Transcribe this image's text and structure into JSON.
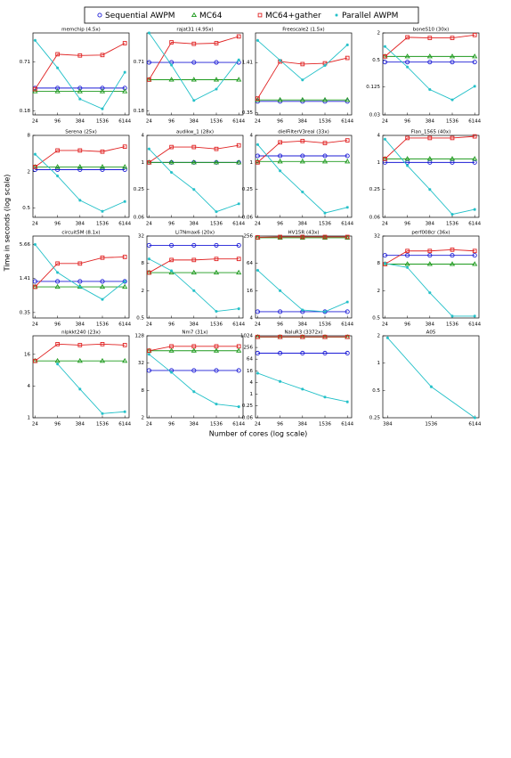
{
  "legend": [
    {
      "name": "Sequential AWPM",
      "color": "#1c1cd6",
      "marker": "circle"
    },
    {
      "name": "MC64",
      "color": "#1e9a1e",
      "marker": "triangle"
    },
    {
      "name": "MC64+gather",
      "color": "#e02222",
      "marker": "square"
    },
    {
      "name": "Parallel AWPM",
      "color": "#22c0c8",
      "marker": "star"
    }
  ],
  "y_label": "Time in seconds (log scale)",
  "x_label": "Number of cores (log scale)",
  "chart_data": [
    {
      "type": "line",
      "title": "memchip (4.5x)",
      "x": [
        24,
        96,
        384,
        1536,
        6144
      ],
      "xticks": [
        24,
        96,
        384,
        1536,
        6144
      ],
      "xlim": [
        21,
        8000
      ],
      "xscale": "log",
      "yscale": "log",
      "ylim": [
        0.16,
        1.6
      ],
      "yticks": [
        0.18,
        0.71
      ],
      "series": [
        {
          "values": [
            0.34,
            0.34,
            0.34,
            0.34,
            0.34
          ]
        },
        {
          "values": [
            0.31,
            0.31,
            0.31,
            0.31,
            0.31
          ]
        },
        {
          "values": [
            0.33,
            0.88,
            0.85,
            0.86,
            1.2
          ]
        },
        {
          "values": [
            1.3,
            0.6,
            0.25,
            0.19,
            0.53
          ]
        }
      ]
    },
    {
      "type": "line",
      "title": "rajat31 (4.95x)",
      "x": [
        24,
        96,
        384,
        1536,
        6144
      ],
      "xticks": [
        24,
        96,
        384,
        1536,
        6144
      ],
      "xlim": [
        21,
        8000
      ],
      "xscale": "log",
      "yscale": "log",
      "ylim": [
        0.16,
        1.6
      ],
      "yticks": [
        0.18,
        0.71
      ],
      "series": [
        {
          "values": [
            0.7,
            0.7,
            0.7,
            0.7,
            0.7
          ]
        },
        {
          "values": [
            0.43,
            0.43,
            0.43,
            0.43,
            0.43
          ]
        },
        {
          "values": [
            0.43,
            1.23,
            1.18,
            1.2,
            1.45
          ]
        },
        {
          "values": [
            1.6,
            0.65,
            0.24,
            0.33,
            0.75
          ]
        }
      ]
    },
    {
      "type": "line",
      "title": "Freescale2 (1.5x)",
      "x": [
        24,
        96,
        384,
        1536,
        6144
      ],
      "xticks": [
        24,
        96,
        384,
        1536,
        6144
      ],
      "xlim": [
        21,
        8000
      ],
      "xscale": "log",
      "yscale": "log",
      "ylim": [
        0.33,
        3.2
      ],
      "yticks": [
        0.35,
        1.41
      ],
      "series": [
        {
          "values": [
            0.48,
            0.48,
            0.48,
            0.48,
            0.48
          ]
        },
        {
          "values": [
            0.5,
            0.5,
            0.5,
            0.5,
            0.5
          ]
        },
        {
          "values": [
            0.52,
            1.45,
            1.35,
            1.38,
            1.6
          ]
        },
        {
          "values": [
            2.6,
            1.5,
            0.87,
            1.3,
            2.3
          ]
        }
      ]
    },
    {
      "type": "line",
      "title": "boneS10 (30x)",
      "x": [
        24,
        96,
        384,
        1536,
        6144
      ],
      "xticks": [
        24,
        96,
        384,
        1536,
        6144
      ],
      "xlim": [
        21,
        8000
      ],
      "xscale": "log",
      "yscale": "log",
      "ylim": [
        0.03,
        2
      ],
      "yticks": [
        0.03,
        0.125,
        0.5,
        2
      ],
      "series": [
        {
          "values": [
            0.45,
            0.45,
            0.45,
            0.45,
            0.45
          ]
        },
        {
          "values": [
            0.6,
            0.6,
            0.6,
            0.6,
            0.6
          ]
        },
        {
          "values": [
            0.6,
            1.6,
            1.55,
            1.55,
            1.8
          ]
        },
        {
          "values": [
            1.0,
            0.35,
            0.11,
            0.065,
            0.13
          ]
        }
      ]
    },
    {
      "type": "line",
      "title": "Serena (25x)",
      "x": [
        24,
        96,
        384,
        1536,
        6144
      ],
      "xticks": [
        24,
        96,
        384,
        1536,
        6144
      ],
      "xlim": [
        21,
        8000
      ],
      "xscale": "log",
      "yscale": "log",
      "ylim": [
        0.35,
        8
      ],
      "yticks": [
        0.5,
        2,
        8
      ],
      "series": [
        {
          "values": [
            2.16,
            2.16,
            2.16,
            2.16,
            2.16
          ]
        },
        {
          "values": [
            2.4,
            2.4,
            2.4,
            2.4,
            2.4
          ]
        },
        {
          "values": [
            2.4,
            4.5,
            4.5,
            4.3,
            5.2
          ]
        },
        {
          "values": [
            3.9,
            1.7,
            0.67,
            0.44,
            0.64
          ]
        }
      ]
    },
    {
      "type": "line",
      "title": "audikw_1 (28x)",
      "x": [
        24,
        96,
        384,
        1536,
        6144
      ],
      "xticks": [
        24,
        96,
        384,
        1536,
        6144
      ],
      "xlim": [
        21,
        8000
      ],
      "xscale": "log",
      "yscale": "log",
      "ylim": [
        0.06,
        4
      ],
      "yticks": [
        0.06,
        0.25,
        1,
        4
      ],
      "series": [
        {
          "values": [
            1,
            1,
            1,
            1,
            1
          ]
        },
        {
          "values": [
            1,
            1,
            1,
            1,
            1
          ]
        },
        {
          "values": [
            1,
            2.2,
            2.2,
            2,
            2.4
          ]
        },
        {
          "values": [
            2,
            0.6,
            0.25,
            0.08,
            0.12
          ]
        }
      ]
    },
    {
      "type": "line",
      "title": "dielFilterV3real (33x)",
      "x": [
        24,
        96,
        384,
        1536,
        6144
      ],
      "xticks": [
        24,
        96,
        384,
        1536,
        6144
      ],
      "xlim": [
        21,
        8000
      ],
      "xscale": "log",
      "yscale": "log",
      "ylim": [
        0.06,
        4
      ],
      "yticks": [
        0.06,
        0.25,
        1,
        4
      ],
      "series": [
        {
          "values": [
            1.4,
            1.4,
            1.4,
            1.4,
            1.4
          ]
        },
        {
          "values": [
            1.05,
            1.05,
            1.05,
            1.05,
            1.05
          ]
        },
        {
          "values": [
            1,
            2.8,
            3,
            2.7,
            3.1
          ]
        },
        {
          "values": [
            2.5,
            0.65,
            0.22,
            0.075,
            0.1
          ]
        }
      ]
    },
    {
      "type": "line",
      "title": "Flan_1565 (40x)",
      "x": [
        24,
        96,
        384,
        1536,
        6144
      ],
      "xticks": [
        24,
        96,
        384,
        1536,
        6144
      ],
      "xlim": [
        21,
        8000
      ],
      "xscale": "log",
      "yscale": "log",
      "ylim": [
        0.06,
        4
      ],
      "yticks": [
        0.06,
        0.25,
        1,
        4
      ],
      "series": [
        {
          "values": [
            1,
            1,
            1,
            1,
            1
          ]
        },
        {
          "values": [
            1.2,
            1.2,
            1.2,
            1.2,
            1.2
          ]
        },
        {
          "values": [
            1.2,
            3.5,
            3.5,
            3.5,
            3.8
          ]
        },
        {
          "values": [
            3.3,
            0.85,
            0.25,
            0.07,
            0.09
          ]
        }
      ]
    },
    {
      "type": "line",
      "title": "circuit5M (8.1x)",
      "x": [
        24,
        96,
        384,
        1536,
        6144
      ],
      "xticks": [
        24,
        96,
        384,
        1536,
        6144
      ],
      "xlim": [
        21,
        8000
      ],
      "xscale": "log",
      "yscale": "log",
      "ylim": [
        0.28,
        8
      ],
      "yticks": [
        0.35,
        1.41,
        5.66
      ],
      "series": [
        {
          "values": [
            1.25,
            1.25,
            1.25,
            1.25,
            1.25
          ]
        },
        {
          "values": [
            1,
            1,
            1,
            1,
            1
          ]
        },
        {
          "values": [
            1,
            2.6,
            2.6,
            3.3,
            3.4
          ]
        },
        {
          "values": [
            5.66,
            1.8,
            1,
            0.6,
            1.25
          ]
        }
      ]
    },
    {
      "type": "line",
      "title": "Li7Nmax6 (20x)",
      "x": [
        24,
        96,
        384,
        1536,
        6144
      ],
      "xticks": [
        24,
        96,
        384,
        1536,
        6144
      ],
      "xlim": [
        21,
        8000
      ],
      "xscale": "log",
      "yscale": "log",
      "ylim": [
        0.5,
        32
      ],
      "yticks": [
        0.5,
        2,
        8,
        32
      ],
      "series": [
        {
          "values": [
            20,
            20,
            20,
            20,
            20
          ]
        },
        {
          "values": [
            5,
            5,
            5,
            5,
            5
          ]
        },
        {
          "values": [
            5,
            9.5,
            9.5,
            10,
            10
          ]
        },
        {
          "values": [
            10,
            5.5,
            2,
            0.7,
            0.8
          ]
        }
      ]
    },
    {
      "type": "line",
      "title": "HV15R (43x)",
      "x": [
        24,
        96,
        384,
        1536,
        6144
      ],
      "xticks": [
        24,
        96,
        384,
        1536,
        6144
      ],
      "xlim": [
        21,
        8000
      ],
      "xscale": "log",
      "yscale": "log",
      "ylim": [
        4,
        256
      ],
      "yticks": [
        4,
        16,
        64,
        256
      ],
      "series": [
        {
          "values": [
            5.5,
            5.5,
            5.5,
            5.5,
            5.5
          ]
        },
        {
          "values": [
            235,
            235,
            235,
            235,
            235
          ]
        },
        {
          "values": [
            240,
            245,
            245,
            245,
            245
          ]
        },
        {
          "values": [
            45,
            16,
            6,
            5.5,
            9
          ]
        }
      ]
    },
    {
      "type": "line",
      "title": "perf008cr (36x)",
      "x": [
        24,
        96,
        384,
        1536,
        6144
      ],
      "xticks": [
        24,
        96,
        384,
        1536,
        6144
      ],
      "xlim": [
        21,
        8000
      ],
      "xscale": "log",
      "yscale": "log",
      "ylim": [
        0.5,
        32
      ],
      "yticks": [
        0.5,
        2,
        8,
        32
      ],
      "series": [
        {
          "values": [
            12,
            12,
            12,
            12,
            12
          ]
        },
        {
          "values": [
            7.7,
            7.7,
            7.7,
            7.7,
            7.7
          ]
        },
        {
          "values": [
            7.7,
            15,
            15,
            16,
            15
          ]
        },
        {
          "values": [
            8,
            6.5,
            1.8,
            0.55,
            0.55
          ]
        }
      ]
    },
    {
      "type": "line",
      "title": "nlpkkt240 (23x)",
      "x": [
        24,
        96,
        384,
        1536,
        6144
      ],
      "xticks": [
        24,
        96,
        384,
        1536,
        6144
      ],
      "xlim": [
        21,
        8000
      ],
      "xscale": "log",
      "yscale": "log",
      "ylim": [
        1,
        36
      ],
      "yticks": [
        1,
        4,
        16
      ],
      "series": [
        {
          "values": [
            null,
            null,
            null,
            null,
            null
          ]
        },
        {
          "values": [
            12,
            12,
            12,
            12,
            12
          ]
        },
        {
          "values": [
            12,
            25,
            24,
            25,
            24
          ]
        },
        {
          "values": [
            null,
            10.5,
            3.5,
            1.2,
            1.3
          ]
        }
      ]
    },
    {
      "type": "line",
      "title": "Nm7 (31x)",
      "x": [
        24,
        96,
        384,
        1536,
        6144
      ],
      "xticks": [
        24,
        96,
        384,
        1536,
        6144
      ],
      "xlim": [
        21,
        8000
      ],
      "xscale": "log",
      "yscale": "log",
      "ylim": [
        2,
        128
      ],
      "yticks": [
        2,
        8,
        32,
        128
      ],
      "series": [
        {
          "values": [
            22,
            22,
            22,
            22,
            22
          ]
        },
        {
          "values": [
            60,
            60,
            60,
            60,
            60
          ]
        },
        {
          "values": [
            60,
            75,
            75,
            75,
            75
          ]
        },
        {
          "values": [
            50,
            20,
            7.5,
            4,
            3.5
          ]
        }
      ]
    },
    {
      "type": "line",
      "title": "NaluR3 (3372x)",
      "x": [
        24,
        96,
        384,
        1536,
        6144
      ],
      "xticks": [
        24,
        96,
        384,
        1536,
        6144
      ],
      "xlim": [
        21,
        8000
      ],
      "xscale": "log",
      "yscale": "log",
      "ylim": [
        0.06,
        1024
      ],
      "yticks": [
        0.06,
        0.25,
        1,
        4,
        16,
        64,
        256,
        1024
      ],
      "series": [
        {
          "values": [
            130,
            130,
            130,
            130,
            130
          ]
        },
        {
          "values": [
            880,
            880,
            880,
            880,
            880
          ]
        },
        {
          "values": [
            900,
            900,
            900,
            900,
            900
          ]
        },
        {
          "values": [
            12,
            4.5,
            1.8,
            0.7,
            0.4
          ]
        }
      ]
    },
    {
      "type": "line",
      "title": "A05",
      "x": [
        384,
        1536,
        6144
      ],
      "xticks": [
        384,
        1536,
        6144
      ],
      "xlim": [
        330,
        7000
      ],
      "xscale": "log",
      "yscale": "log",
      "ylim": [
        0.25,
        2
      ],
      "yticks": [
        0.25,
        0.5,
        1,
        2
      ],
      "series": [
        {
          "values": [
            null,
            null,
            null
          ]
        },
        {
          "values": [
            null,
            null,
            null
          ]
        },
        {
          "values": [
            null,
            null,
            null
          ]
        },
        {
          "values": [
            1.9,
            0.55,
            0.25
          ]
        }
      ]
    }
  ]
}
